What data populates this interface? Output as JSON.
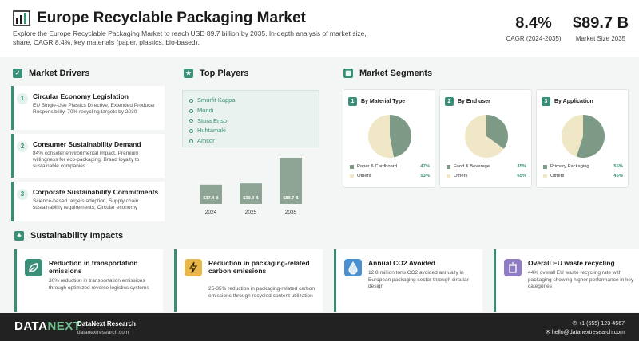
{
  "header": {
    "title": "Europe Recyclable Packaging Market",
    "subtitle": "Explore the Europe Recyclable Packaging Market to reach USD 89.7 billion by 2035. In-depth analysis of market size, share, CAGR 8.4%, key materials (paper, plastics, bio-based).",
    "stats": [
      {
        "value": "8.4%",
        "label": "CAGR (2024-2035)"
      },
      {
        "value": "$89.7 B",
        "label": "Market Size 2035"
      }
    ]
  },
  "drivers": {
    "heading": "Market Drivers",
    "items": [
      {
        "num": "1",
        "title": "Circular Economy Legislation",
        "desc": "EU Single-Use Plastics Directive, Extended Producer Responsibility, 70% recycling targets by 2030"
      },
      {
        "num": "2",
        "title": "Consumer Sustainability Demand",
        "desc": "84% consider environmental impact, Premium willingness for eco-packaging, Brand loyalty to sustainable companies"
      },
      {
        "num": "3",
        "title": "Corporate Sustainability Commitments",
        "desc": "Science-based targets adoption, Supply chain sustainability requirements, Circular economy"
      }
    ]
  },
  "players": {
    "heading": "Top Players",
    "items": [
      "Smurfit Kappa",
      "Mondi",
      "Stora Enso",
      "Huhtamaki",
      "Amcor"
    ]
  },
  "chart_data": {
    "type": "bar",
    "categories": [
      "2024",
      "2025",
      "2035"
    ],
    "values": [
      37.4,
      39.9,
      89.7
    ],
    "labels": [
      "$37.4 B",
      "$39.9 B",
      "$89.7 B"
    ],
    "color": "#8ea596"
  },
  "segments": {
    "heading": "Market Segments",
    "cards": [
      {
        "num": "1",
        "title": "By Material Type",
        "items": [
          {
            "label": "Paper & Cardboard",
            "pct": "47%",
            "value": 47,
            "color": "#7d9a86"
          },
          {
            "label": "Others",
            "pct": "53%",
            "value": 53,
            "color": "#efe7c6"
          }
        ]
      },
      {
        "num": "2",
        "title": "By End user",
        "items": [
          {
            "label": "Food & Beverage",
            "pct": "35%",
            "value": 35,
            "color": "#7d9a86"
          },
          {
            "label": "Others",
            "pct": "65%",
            "value": 65,
            "color": "#efe7c6"
          }
        ]
      },
      {
        "num": "3",
        "title": "By Application",
        "items": [
          {
            "label": "Primary Packaging",
            "pct": "55%",
            "value": 55,
            "color": "#7d9a86"
          },
          {
            "label": "Others",
            "pct": "45%",
            "value": 45,
            "color": "#efe7c6"
          }
        ]
      }
    ]
  },
  "impacts": {
    "heading": "Sustainability Impacts",
    "items": [
      {
        "title": "Reduction in transportation emissions",
        "desc": "30% reduction in transportation emissions through optimized reverse logistics systems",
        "icon": "leaf-icon",
        "color": "#3a8f78"
      },
      {
        "title": "Reduction in packaging-related carbon emissions",
        "desc": "25-35% reduction in packaging-related carbon emissions through recycled content utilization",
        "icon": "bolt-icon",
        "color": "#e8b64a"
      },
      {
        "title": "Annual CO2 Avoided",
        "desc": "12.8 million tons CO2 avoided annually in European packaging sector through circular design",
        "icon": "drop-icon",
        "color": "#4a8fd0"
      },
      {
        "title": "Overall EU waste recycling",
        "desc": "44% overall EU waste recycling rate with packaging showing higher performance in key categories",
        "icon": "recycle-bin-icon",
        "color": "#8f7cc4"
      }
    ]
  },
  "footer": {
    "logo_a": "DATA",
    "logo_b": "NEXT",
    "brand": "DataNext Research",
    "url": "datanextresearch.com",
    "phone": "+1 (555) 123-4567",
    "email": "hello@datanextresearch.com"
  }
}
